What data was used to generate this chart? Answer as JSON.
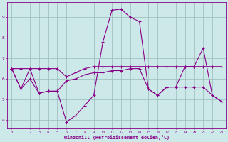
{
  "xlabel": "Windchill (Refroidissement éolien,°C)",
  "bg_color": "#cce8e8",
  "line_color": "#880088",
  "grid_color": "#99bbbb",
  "xlim": [
    -0.5,
    23.5
  ],
  "ylim": [
    3.6,
    9.75
  ],
  "yticks": [
    4,
    5,
    6,
    7,
    8,
    9
  ],
  "xticks": [
    0,
    1,
    2,
    3,
    4,
    5,
    6,
    7,
    8,
    9,
    10,
    11,
    12,
    13,
    14,
    15,
    16,
    17,
    18,
    19,
    20,
    21,
    22,
    23
  ],
  "line1": [
    6.5,
    5.5,
    6.5,
    5.3,
    5.4,
    5.4,
    3.9,
    4.2,
    4.7,
    5.2,
    7.8,
    9.35,
    9.4,
    9.0,
    8.8,
    5.5,
    5.2,
    5.6,
    5.6,
    6.6,
    6.6,
    7.5,
    5.2,
    4.9
  ],
  "line2": [
    6.5,
    6.5,
    6.5,
    6.5,
    6.5,
    6.5,
    6.1,
    6.3,
    6.5,
    6.6,
    6.6,
    6.6,
    6.6,
    6.6,
    6.6,
    6.6,
    6.6,
    6.6,
    6.6,
    6.6,
    6.6,
    6.6,
    6.6,
    6.6
  ],
  "line3": [
    6.5,
    5.5,
    6.0,
    5.3,
    5.4,
    5.4,
    5.9,
    6.0,
    6.2,
    6.3,
    6.3,
    6.4,
    6.4,
    6.5,
    6.5,
    5.5,
    5.2,
    5.6,
    5.6,
    5.6,
    5.6,
    5.6,
    5.2,
    4.9
  ]
}
